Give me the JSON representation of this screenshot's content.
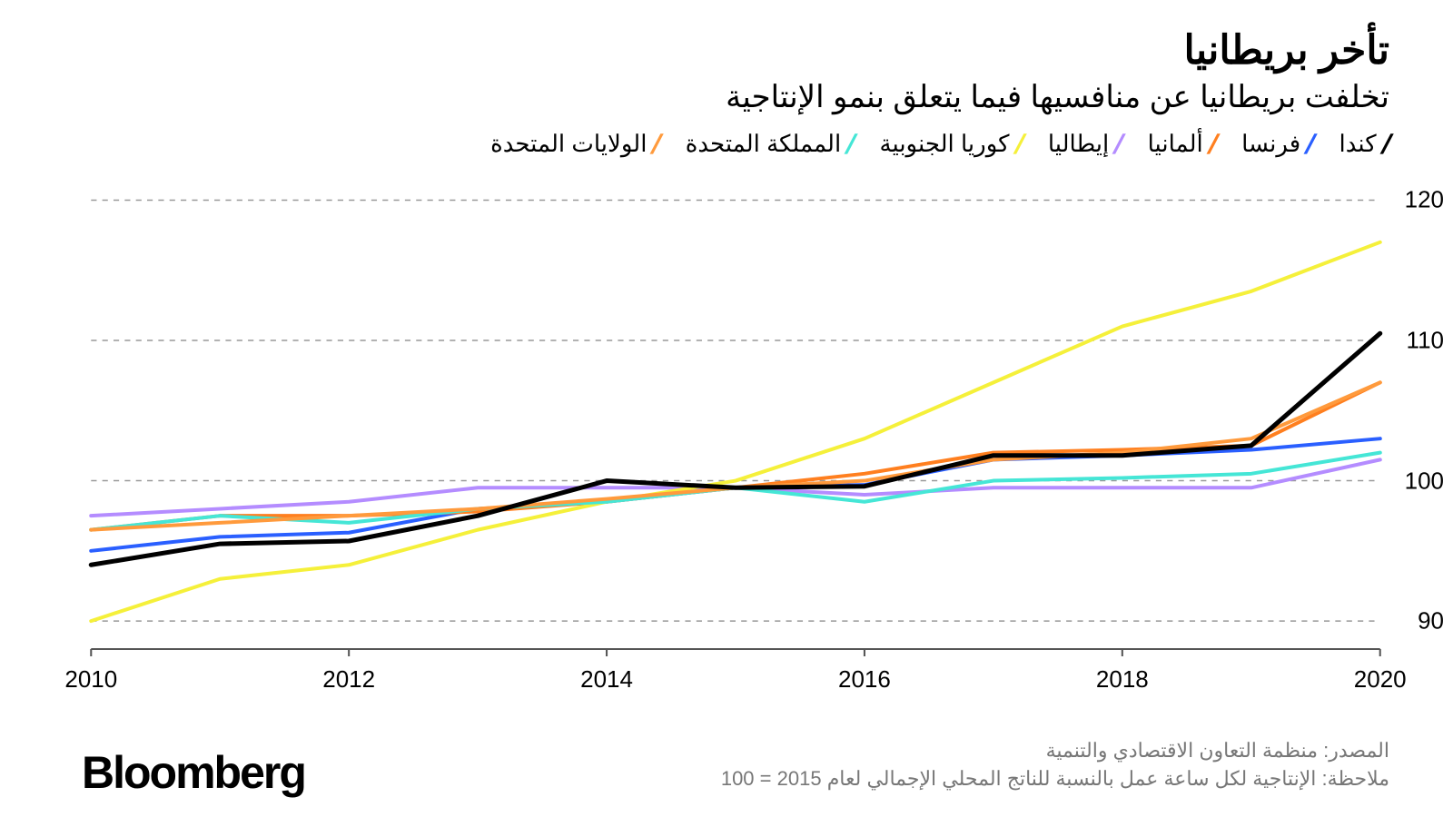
{
  "title": "تأخر بريطانيا",
  "subtitle": "تخلفت بريطانيا عن منافسيها فيما يتعلق بنمو الإنتاجية",
  "logo": "Bloomberg",
  "source": "المصدر: منظمة التعاون الاقتصادي والتنمية",
  "note": "ملاحظة: الإنتاجية لكل ساعة عمل بالنسبة للناتج المحلي الإجمالي لعام 2015 = 100",
  "chart": {
    "type": "line",
    "background_color": "#ffffff",
    "grid_color": "#999999",
    "axis_color": "#555555",
    "x_years": [
      2010,
      2011,
      2012,
      2013,
      2014,
      2015,
      2016,
      2017,
      2018,
      2019,
      2020
    ],
    "x_ticks": [
      2010,
      2012,
      2014,
      2016,
      2018,
      2020
    ],
    "y_ticks": [
      90,
      100,
      110,
      120
    ],
    "ylim": [
      88,
      121
    ],
    "line_width": 4,
    "emphasis_line_width": 5,
    "legend_order": [
      "canada",
      "france",
      "germany",
      "italy",
      "southkorea",
      "uk",
      "usa"
    ],
    "series": {
      "canada": {
        "label": "كندا",
        "color": "#000000",
        "emphasis": true,
        "values": [
          94.0,
          95.5,
          95.7,
          97.5,
          100.0,
          99.5,
          99.6,
          101.8,
          101.8,
          102.5,
          110.5
        ]
      },
      "france": {
        "label": "فرنسا",
        "color": "#2a5fff",
        "values": [
          95.0,
          96.0,
          96.3,
          98.0,
          98.5,
          99.5,
          99.7,
          101.5,
          101.8,
          102.2,
          103.0
        ]
      },
      "germany": {
        "label": "ألمانيا",
        "color": "#ff7f1f",
        "values": [
          96.5,
          97.5,
          97.5,
          97.8,
          98.5,
          99.5,
          100.5,
          102.0,
          102.2,
          102.5,
          107.0
        ]
      },
      "italy": {
        "label": "إيطاليا",
        "color": "#b48cff",
        "values": [
          97.5,
          98.0,
          98.5,
          99.5,
          99.5,
          99.5,
          99.0,
          99.5,
          99.5,
          99.5,
          101.5
        ]
      },
      "southkorea": {
        "label": "كوريا الجنوبية",
        "color": "#f5f03a",
        "values": [
          90.0,
          93.0,
          94.0,
          96.5,
          98.5,
          100.0,
          103.0,
          107.0,
          111.0,
          113.5,
          117.0
        ]
      },
      "uk": {
        "label": "المملكة المتحدة",
        "color": "#45e6d6",
        "values": [
          96.5,
          97.5,
          97.0,
          98.0,
          98.5,
          99.5,
          98.5,
          100.0,
          100.2,
          100.5,
          102.0
        ]
      },
      "usa": {
        "label": "الولايات المتحدة",
        "color": "#ff9a3c",
        "values": [
          96.5,
          97.0,
          97.5,
          98.0,
          98.7,
          99.5,
          100.0,
          101.5,
          102.0,
          103.0,
          107.0
        ]
      }
    }
  }
}
